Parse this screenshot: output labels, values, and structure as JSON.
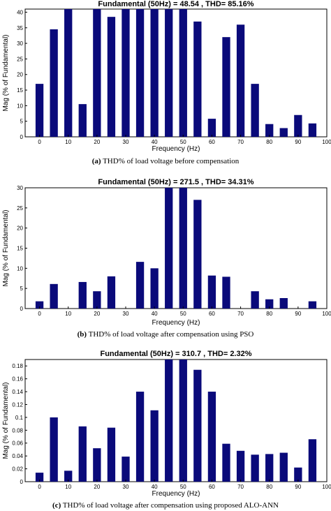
{
  "chart_data": [
    {
      "type": "bar",
      "title": "Fundamental (50Hz) = 48.54 , THD= 85.16%",
      "xlabel": "Frequency (Hz)",
      "ylabel": "Mag (% of Fundamental)",
      "caption_id": "(a)",
      "caption_text": " THD% of load voltage before compensation",
      "xlim": [
        -5,
        100
      ],
      "ylim": [
        0,
        41
      ],
      "xticks": [
        0,
        10,
        20,
        30,
        40,
        50,
        60,
        70,
        80,
        90,
        100
      ],
      "yticks": [
        0,
        5,
        10,
        15,
        20,
        25,
        30,
        35,
        40
      ],
      "ytick_labels": [
        "0",
        "5",
        "10",
        "15",
        "20",
        "25",
        "30",
        "35",
        "40"
      ],
      "bar_color": "#0a0a7a",
      "x": [
        0,
        5,
        10,
        15,
        20,
        25,
        30,
        35,
        40,
        45,
        50,
        55,
        60,
        65,
        70,
        75,
        80,
        85,
        90,
        95
      ],
      "values": [
        17.0,
        34.5,
        41,
        10.5,
        41,
        38.5,
        41,
        41,
        41,
        41,
        41,
        37.0,
        5.8,
        32.0,
        36.0,
        17.0,
        4.1,
        2.8,
        7.0,
        4.3
      ]
    },
    {
      "type": "bar",
      "title": "Fundamental (50Hz) = 271.5 , THD= 34.31%",
      "xlabel": "Frequency (Hz)",
      "ylabel": "Mag (% of Fundamental)",
      "caption_id": "(b)",
      "caption_text": " THD% of load voltage after compensation using PSO",
      "xlim": [
        -5,
        100
      ],
      "ylim": [
        0,
        30
      ],
      "xticks": [
        0,
        10,
        20,
        30,
        40,
        50,
        60,
        70,
        80,
        90,
        100
      ],
      "yticks": [
        0,
        5,
        10,
        15,
        20,
        25,
        30
      ],
      "ytick_labels": [
        "0",
        "5",
        "10",
        "15",
        "20",
        "25",
        "30"
      ],
      "bar_color": "#0a0a7a",
      "x": [
        0,
        5,
        10,
        15,
        20,
        25,
        30,
        35,
        40,
        45,
        50,
        55,
        60,
        65,
        70,
        75,
        80,
        85,
        90,
        95
      ],
      "values": [
        1.8,
        6.1,
        0,
        6.6,
        4.3,
        8.0,
        0,
        11.6,
        10.0,
        30,
        30,
        27.0,
        8.2,
        7.9,
        0,
        4.3,
        2.3,
        2.6,
        0,
        1.8
      ]
    },
    {
      "type": "bar",
      "title": "Fundamental (50Hz) = 310.7 , THD= 2.32%",
      "xlabel": "Frequency (Hz)",
      "ylabel": "Mag (% of Fundamental)",
      "caption_id": "(c)",
      "caption_text": " THD% of load voltage after compensation using proposed ALO-ANN",
      "xlim": [
        -5,
        100
      ],
      "ylim": [
        0,
        0.19
      ],
      "xticks": [
        0,
        10,
        20,
        30,
        40,
        50,
        60,
        70,
        80,
        90,
        100
      ],
      "yticks": [
        0,
        0.02,
        0.04,
        0.06,
        0.08,
        0.1,
        0.12,
        0.14,
        0.16,
        0.18
      ],
      "ytick_labels": [
        "0",
        "0.02",
        "0.04",
        "0.06",
        "0.08",
        "0.1",
        "0.12",
        "0.14",
        "0.16",
        "0.18"
      ],
      "bar_color": "#0a0a7a",
      "x": [
        0,
        5,
        10,
        15,
        20,
        25,
        30,
        35,
        40,
        45,
        50,
        55,
        60,
        65,
        70,
        75,
        80,
        85,
        90,
        95
      ],
      "values": [
        0.014,
        0.1,
        0.017,
        0.086,
        0.052,
        0.084,
        0.039,
        0.14,
        0.111,
        0.19,
        0.19,
        0.174,
        0.14,
        0.059,
        0.048,
        0.042,
        0.043,
        0.045,
        0.022,
        0.066
      ]
    }
  ]
}
